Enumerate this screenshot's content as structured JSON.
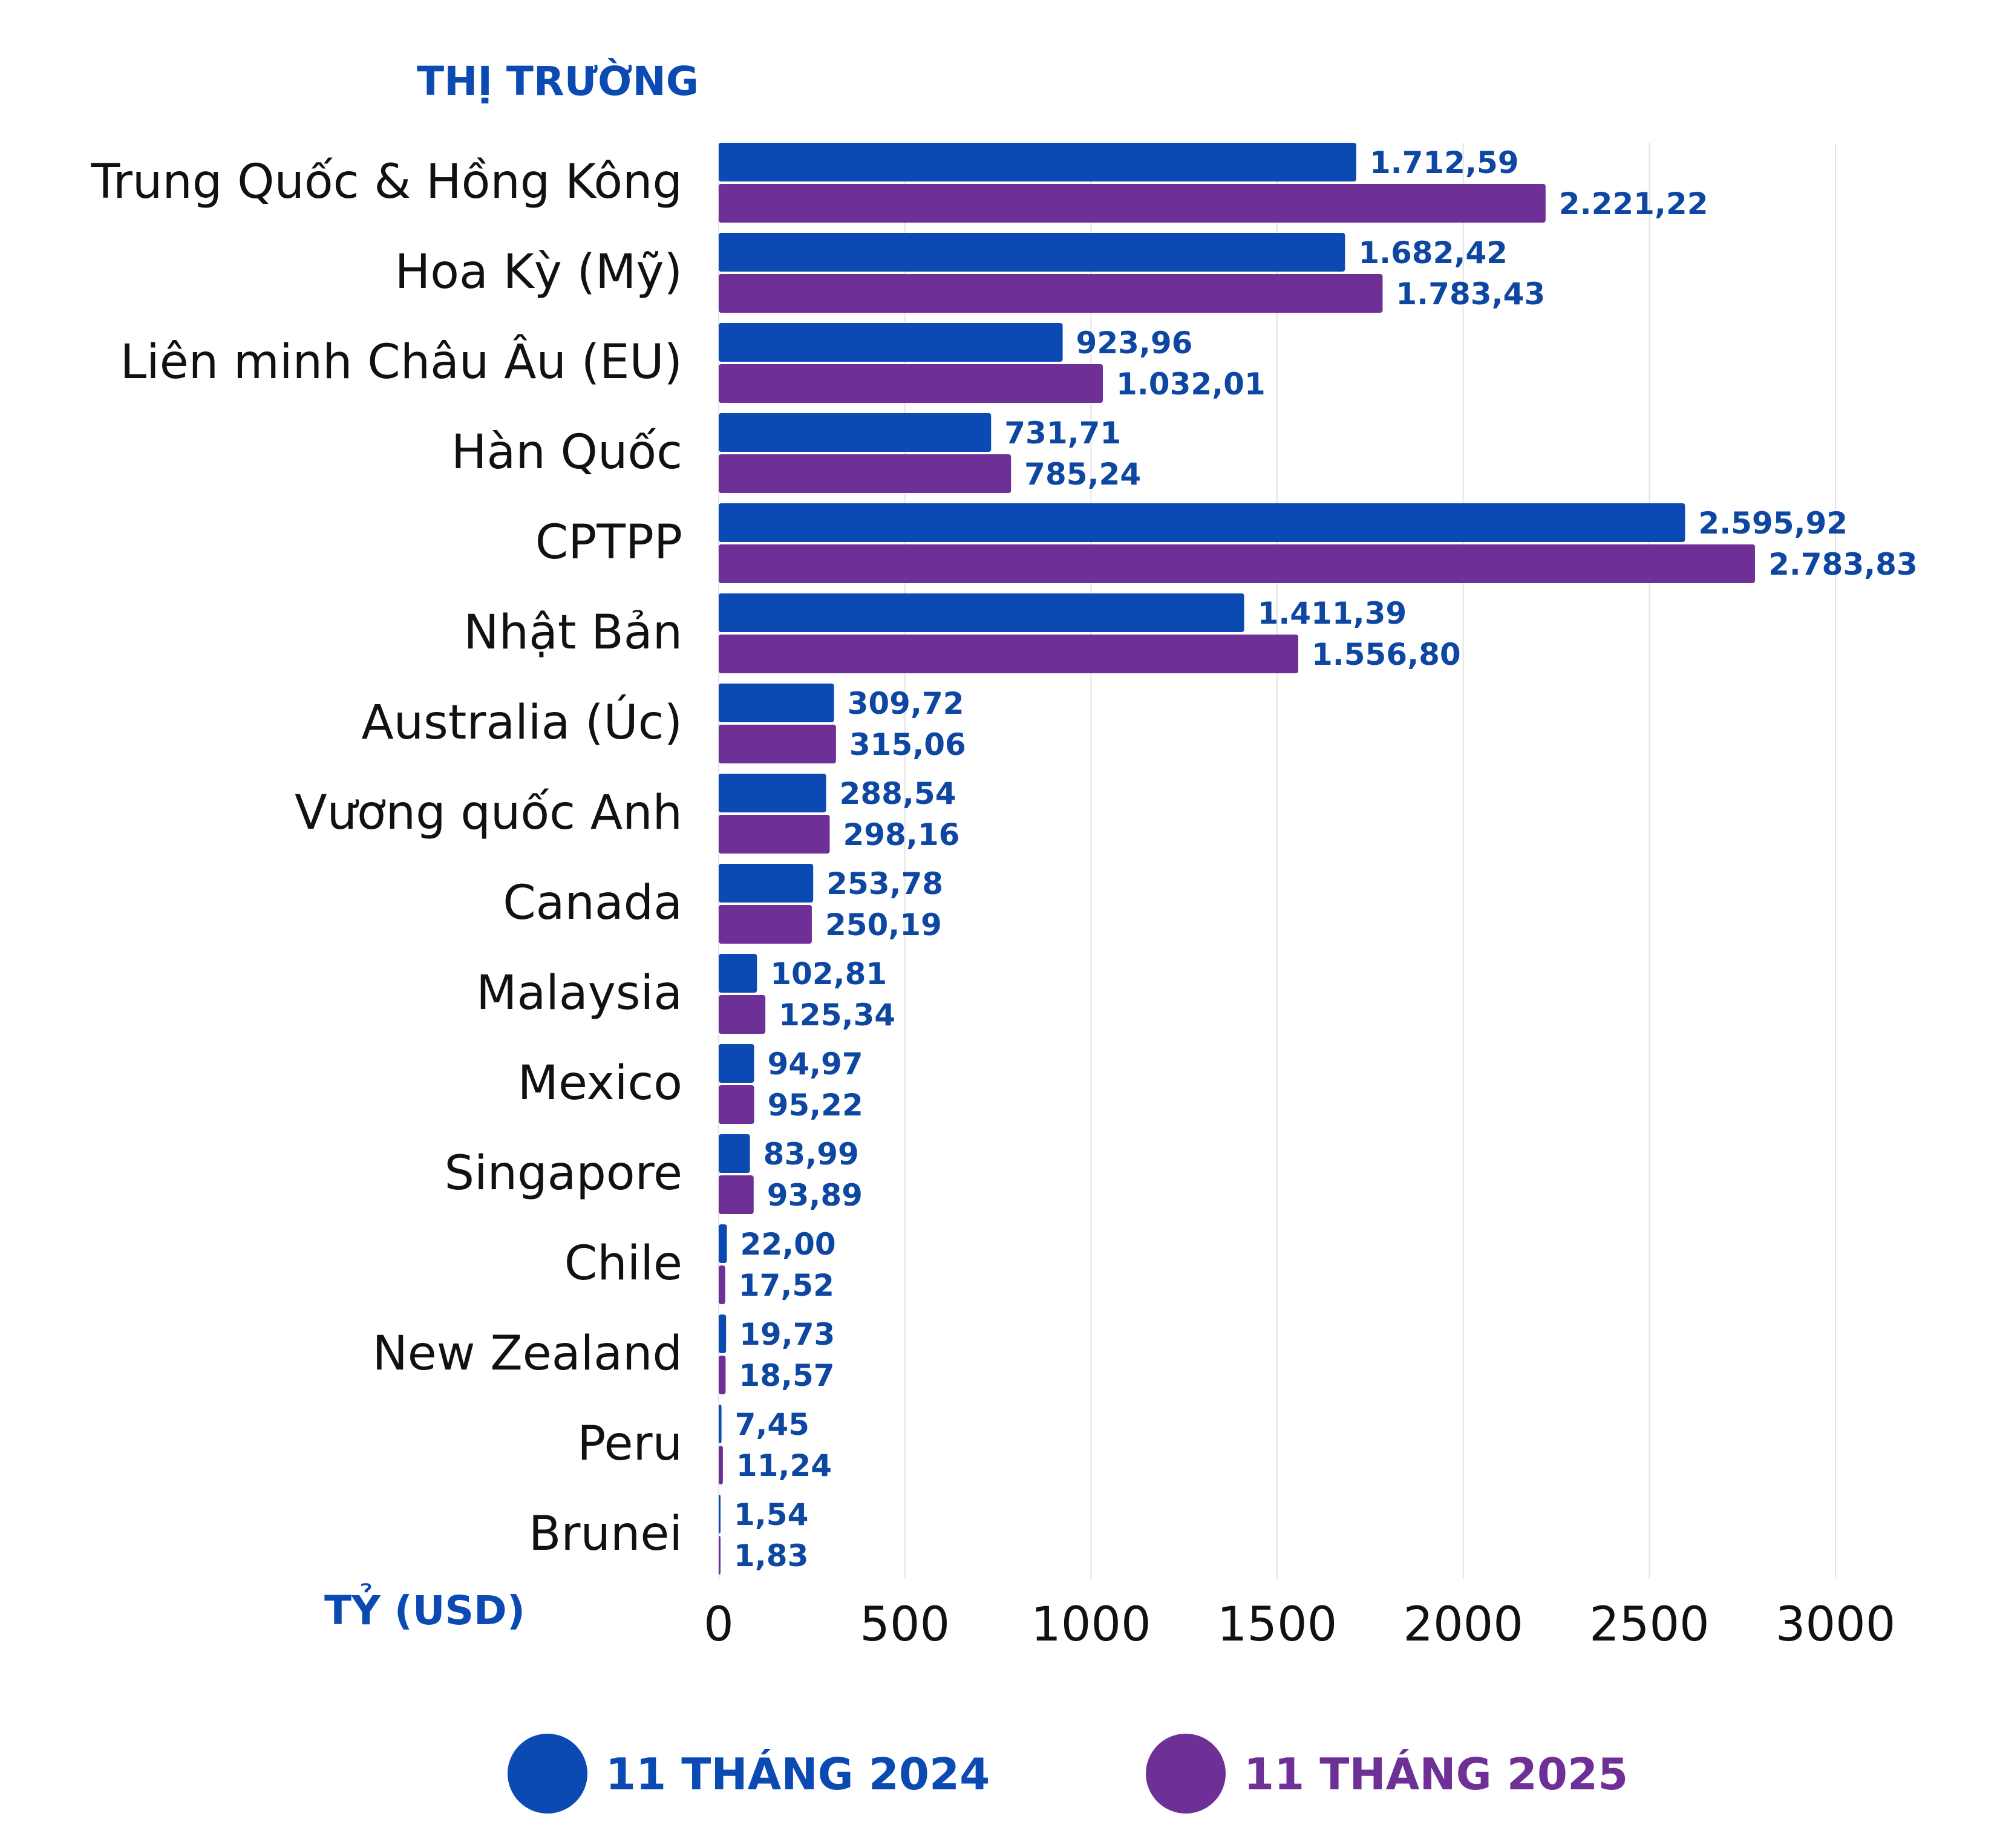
{
  "chart_data": {
    "type": "bar",
    "orientation": "horizontal",
    "ylabel": "THỊ TRƯỜNG",
    "xlabel": "TỶ (USD)",
    "xlim": [
      0,
      3000
    ],
    "xticks": [
      0,
      500,
      1000,
      1500,
      2000,
      2500,
      3000
    ],
    "grid": true,
    "legend_position": "bottom",
    "categories": [
      "Trung Quốc & Hồng Kông",
      "Hoa Kỳ (Mỹ)",
      "Liên minh Châu Âu (EU)",
      "Hàn Quốc",
      "CPTPP",
      "Nhật Bản",
      "Australia (Úc)",
      "Vương quốc Anh",
      "Canada",
      "Malaysia",
      "Mexico",
      "Singapore",
      "Chile",
      "New Zealand",
      "Peru",
      "Brunei"
    ],
    "series": [
      {
        "name": "11 THÁNG 2024",
        "color": "#0a4ab2",
        "values": [
          1712.59,
          1682.42,
          923.96,
          731.71,
          2595.92,
          1411.39,
          309.72,
          288.54,
          253.78,
          102.81,
          94.97,
          83.99,
          22.0,
          19.73,
          7.45,
          1.54
        ],
        "labels": [
          "1.712,59",
          "1.682,42",
          "923,96",
          "731,71",
          "2.595,92",
          "1.411,39",
          "309,72",
          "288,54",
          "253,78",
          "102,81",
          "94,97",
          "83,99",
          "22,00",
          "19,73",
          "7,45",
          "1,54"
        ]
      },
      {
        "name": "11 THÁNG 2025",
        "color": "#6e2f96",
        "values": [
          2221.22,
          1783.43,
          1032.01,
          785.24,
          2783.83,
          1556.8,
          315.06,
          298.16,
          250.19,
          125.34,
          95.22,
          93.89,
          17.52,
          18.57,
          11.24,
          1.83
        ],
        "labels": [
          "2.221,22",
          "1.783,43",
          "1.032,01",
          "785,24",
          "2.783,83",
          "1.556,80",
          "315,06",
          "298,16",
          "250,19",
          "125,34",
          "95,22",
          "93,89",
          "17,52",
          "18,57",
          "11,24",
          "1,83"
        ]
      }
    ]
  }
}
